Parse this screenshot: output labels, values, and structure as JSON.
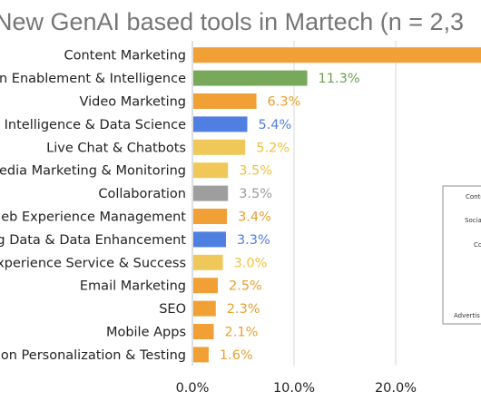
{
  "chart_data": {
    "type": "bar",
    "orientation": "horizontal",
    "title": "New GenAI based tools in Martech (n = 2,3",
    "categories": [
      "Content Marketing",
      "n Enablement & Intelligence",
      "Video Marketing",
      "Intelligence & Data Science",
      "Live Chat & Chatbots",
      "edia Marketing & Monitoring",
      "Collaboration",
      "eb Experience Management",
      "g Data & Data Enhancement",
      "xperience Service & Success",
      "Email Marketing",
      "SEO",
      "Mobile Apps",
      "on Personalization & Testing"
    ],
    "values": [
      32.0,
      11.3,
      6.3,
      5.4,
      5.2,
      3.5,
      3.5,
      3.4,
      3.3,
      3.0,
      2.5,
      2.3,
      2.1,
      1.6
    ],
    "value_labels": [
      "",
      "11.3%",
      "6.3%",
      "5.4%",
      "5.2%",
      "3.5%",
      "3.5%",
      "3.4%",
      "3.3%",
      "3.0%",
      "2.5%",
      "2.3%",
      "2.1%",
      "1.6%"
    ],
    "bar_colors": [
      "#f0a035",
      "#78a95a",
      "#f0a035",
      "#4f7fe0",
      "#f0c85a",
      "#f0c85a",
      "#9e9e9e",
      "#f0a035",
      "#4f7fe0",
      "#f0c85a",
      "#f0a035",
      "#f0a035",
      "#f0a035",
      "#f0a035"
    ],
    "label_colors": [
      "#e8a030",
      "#6aa050",
      "#e8a030",
      "#4f7fe0",
      "#f0c040",
      "#f0c040",
      "#9a9a9a",
      "#e8a030",
      "#4f7fe0",
      "#f0c040",
      "#e8a030",
      "#e8a030",
      "#e8a030",
      "#e8a030"
    ],
    "xticks": [
      "0.0%",
      "10.0%",
      "20.0%",
      "3"
    ],
    "xtick_values": [
      0,
      10,
      20,
      30
    ],
    "xlim": [
      0,
      32
    ],
    "grid": "vertical",
    "inset_legend": [
      "Conte",
      "Socia",
      "Co",
      "Advertis"
    ]
  }
}
